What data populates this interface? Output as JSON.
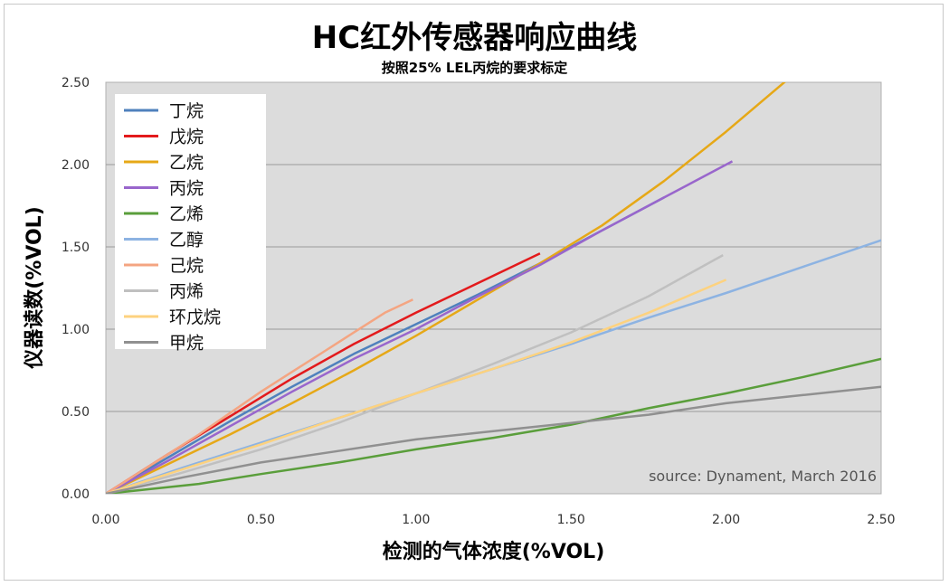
{
  "title": "HC红外传感器响应曲线",
  "subtitle": "按照25% LEL丙烷的要求标定",
  "chart_data": {
    "type": "line",
    "title": "HC红外传感器响应曲线",
    "subtitle": "按照25% LEL丙烷的要求标定",
    "xlabel": "检测的气体浓度(%VOL)",
    "ylabel": "仪器读数(%VOL)",
    "xlim": [
      0,
      2.5
    ],
    "ylim": [
      0,
      2.5
    ],
    "x_ticks": [
      "0.00",
      "0.50",
      "1.00",
      "1.50",
      "2.00",
      "2.50"
    ],
    "y_ticks": [
      "0.00",
      "0.50",
      "1.00",
      "1.50",
      "2.00",
      "2.50"
    ],
    "grid": "horizontal",
    "legend_position": "top-left",
    "annotation": "source: Dynament, March 2016",
    "series": [
      {
        "name": "丁烷",
        "color": "#4f81bd",
        "points": [
          [
            0,
            0
          ],
          [
            0.2,
            0.22
          ],
          [
            0.4,
            0.44
          ],
          [
            0.6,
            0.65
          ],
          [
            0.8,
            0.85
          ],
          [
            1.0,
            1.03
          ],
          [
            1.2,
            1.21
          ],
          [
            1.4,
            1.4
          ],
          [
            1.6,
            1.6
          ],
          [
            1.8,
            1.8
          ]
        ]
      },
      {
        "name": "戊烷",
        "color": "#e31a1c",
        "points": [
          [
            0,
            0
          ],
          [
            0.2,
            0.24
          ],
          [
            0.4,
            0.47
          ],
          [
            0.6,
            0.7
          ],
          [
            0.8,
            0.91
          ],
          [
            1.0,
            1.1
          ],
          [
            1.2,
            1.28
          ],
          [
            1.4,
            1.46
          ]
        ]
      },
      {
        "name": "乙烷",
        "color": "#e6a817",
        "points": [
          [
            0,
            0
          ],
          [
            0.2,
            0.18
          ],
          [
            0.4,
            0.36
          ],
          [
            0.6,
            0.55
          ],
          [
            0.8,
            0.75
          ],
          [
            1.0,
            0.96
          ],
          [
            1.2,
            1.18
          ],
          [
            1.4,
            1.4
          ],
          [
            1.6,
            1.63
          ],
          [
            1.8,
            1.9
          ],
          [
            2.0,
            2.2
          ],
          [
            2.2,
            2.52
          ]
        ]
      },
      {
        "name": "丙烷",
        "color": "#9966cc",
        "points": [
          [
            0,
            0
          ],
          [
            0.2,
            0.2
          ],
          [
            0.4,
            0.41
          ],
          [
            0.6,
            0.62
          ],
          [
            0.8,
            0.82
          ],
          [
            1.0,
            1.0
          ],
          [
            1.2,
            1.2
          ],
          [
            1.4,
            1.39
          ],
          [
            1.6,
            1.6
          ],
          [
            1.8,
            1.8
          ],
          [
            2.02,
            2.02
          ]
        ]
      },
      {
        "name": "乙烯",
        "color": "#5a9e3b",
        "points": [
          [
            0,
            0
          ],
          [
            0.3,
            0.06
          ],
          [
            0.5,
            0.12
          ],
          [
            0.75,
            0.19
          ],
          [
            1.0,
            0.27
          ],
          [
            1.25,
            0.34
          ],
          [
            1.5,
            0.42
          ],
          [
            1.75,
            0.52
          ],
          [
            2.0,
            0.61
          ],
          [
            2.25,
            0.71
          ],
          [
            2.5,
            0.82
          ]
        ]
      },
      {
        "name": "乙醇",
        "color": "#8db3e2",
        "points": [
          [
            0,
            0
          ],
          [
            0.25,
            0.16
          ],
          [
            0.5,
            0.31
          ],
          [
            0.75,
            0.46
          ],
          [
            1.0,
            0.61
          ],
          [
            1.25,
            0.76
          ],
          [
            1.5,
            0.91
          ],
          [
            1.75,
            1.07
          ],
          [
            2.0,
            1.22
          ],
          [
            2.25,
            1.38
          ],
          [
            2.5,
            1.54
          ]
        ]
      },
      {
        "name": "己烷",
        "color": "#f4a582",
        "points": [
          [
            0,
            0
          ],
          [
            0.1,
            0.12
          ],
          [
            0.2,
            0.24
          ],
          [
            0.3,
            0.36
          ],
          [
            0.4,
            0.49
          ],
          [
            0.5,
            0.62
          ],
          [
            0.6,
            0.74
          ],
          [
            0.7,
            0.86
          ],
          [
            0.8,
            0.98
          ],
          [
            0.9,
            1.1
          ],
          [
            0.99,
            1.18
          ]
        ]
      },
      {
        "name": "丙烯",
        "color": "#c0c0c0",
        "points": [
          [
            0,
            0
          ],
          [
            0.25,
            0.13
          ],
          [
            0.5,
            0.27
          ],
          [
            0.75,
            0.43
          ],
          [
            1.0,
            0.61
          ],
          [
            1.25,
            0.79
          ],
          [
            1.5,
            0.98
          ],
          [
            1.75,
            1.2
          ],
          [
            1.99,
            1.45
          ]
        ]
      },
      {
        "name": "环戊烷",
        "color": "#fdd27f",
        "points": [
          [
            0,
            0
          ],
          [
            0.25,
            0.15
          ],
          [
            0.5,
            0.3
          ],
          [
            0.75,
            0.46
          ],
          [
            1.0,
            0.61
          ],
          [
            1.25,
            0.76
          ],
          [
            1.5,
            0.92
          ],
          [
            1.75,
            1.1
          ],
          [
            2.0,
            1.3
          ]
        ]
      },
      {
        "name": "甲烷",
        "color": "#909090",
        "points": [
          [
            0,
            0
          ],
          [
            0.25,
            0.1
          ],
          [
            0.5,
            0.19
          ],
          [
            0.75,
            0.26
          ],
          [
            1.0,
            0.33
          ],
          [
            1.25,
            0.38
          ],
          [
            1.5,
            0.43
          ],
          [
            1.75,
            0.48
          ],
          [
            2.0,
            0.55
          ],
          [
            2.25,
            0.6
          ],
          [
            2.5,
            0.65
          ]
        ]
      }
    ]
  }
}
